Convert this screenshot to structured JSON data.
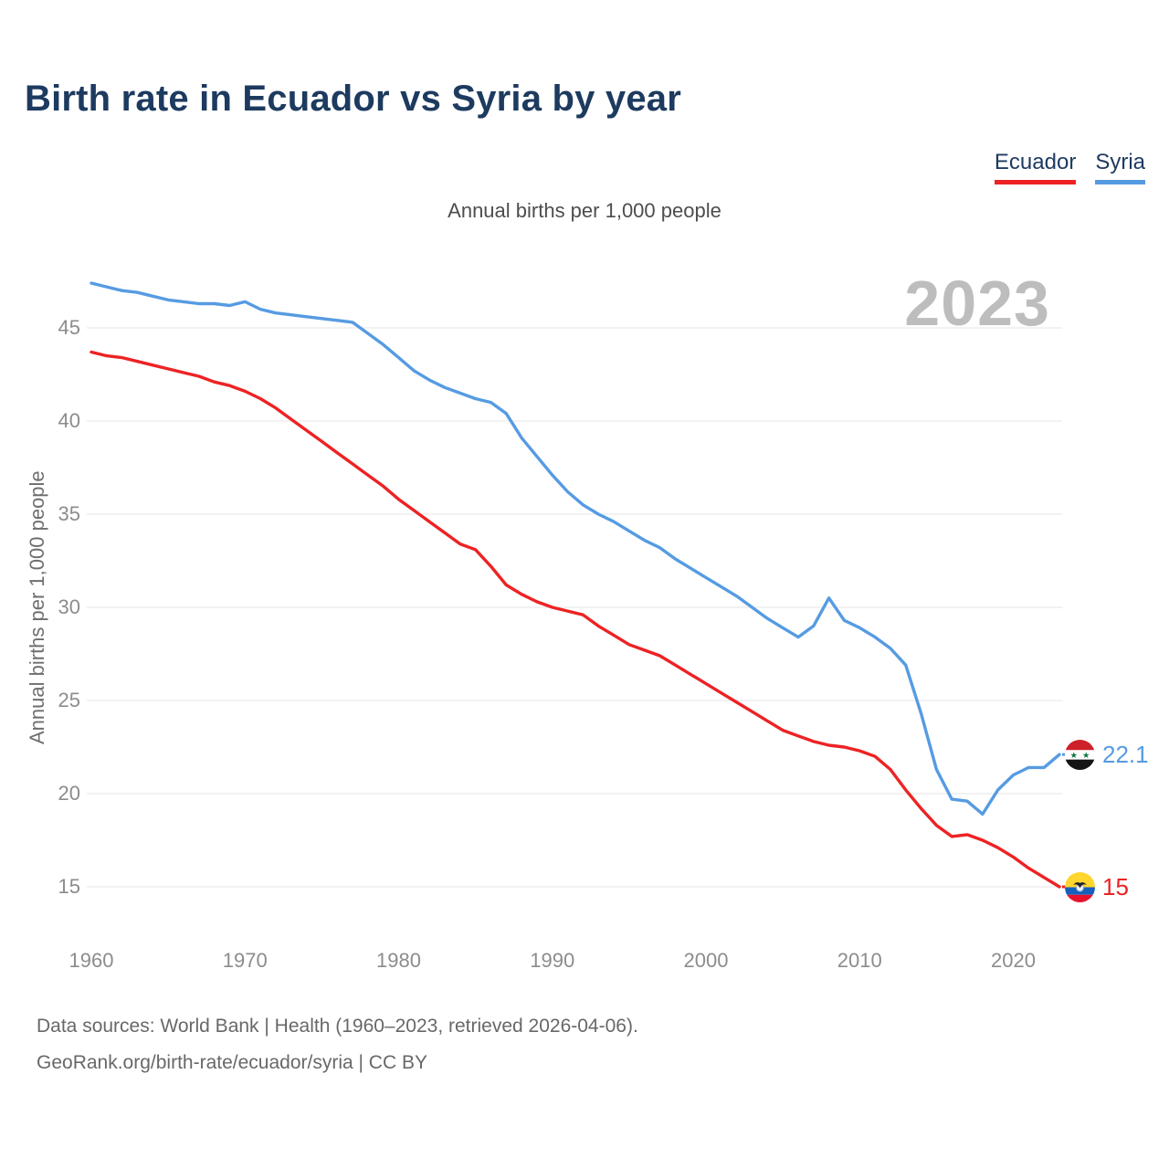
{
  "header": {
    "title": "Birth rate in Ecuador vs Syria by year"
  },
  "legend": {
    "items": [
      {
        "label": "Ecuador",
        "color": "#ed2224"
      },
      {
        "label": "Syria",
        "color": "#569be2"
      }
    ]
  },
  "chart": {
    "subtitle": "Annual births per 1,000 people",
    "ylabel": "Annual births per 1,000 people",
    "watermark": "2023",
    "end_labels": {
      "syria": {
        "text": "22.1",
        "color": "#569be2",
        "icon": "syria-flag"
      },
      "ecuador": {
        "text": "15",
        "color": "#ed2224",
        "icon": "ecuador-flag"
      }
    }
  },
  "footer": {
    "line1": "Data sources: World Bank | Health (1960–2023, retrieved 2026-04-06).",
    "line2": "GeoRank.org/birth-rate/ecuador/syria | CC BY"
  },
  "chart_data": {
    "type": "line",
    "title": "Birth rate in Ecuador vs Syria by year",
    "subtitle": "Annual births per 1,000 people",
    "ylabel": "Annual births per 1,000 people",
    "grid": "horizontal",
    "legend_position": "top-right",
    "ylim": [
      13,
      48.5
    ],
    "yticks": [
      15,
      20,
      25,
      30,
      35,
      40,
      45
    ],
    "xticks": [
      1960,
      1970,
      1980,
      1990,
      2000,
      2010,
      2020
    ],
    "x": [
      1960,
      1961,
      1962,
      1963,
      1964,
      1965,
      1966,
      1967,
      1968,
      1969,
      1970,
      1971,
      1972,
      1973,
      1974,
      1975,
      1976,
      1977,
      1978,
      1979,
      1980,
      1981,
      1982,
      1983,
      1984,
      1985,
      1986,
      1987,
      1988,
      1989,
      1990,
      1991,
      1992,
      1993,
      1994,
      1995,
      1996,
      1997,
      1998,
      1999,
      2000,
      2001,
      2002,
      2003,
      2004,
      2005,
      2006,
      2007,
      2008,
      2009,
      2010,
      2011,
      2012,
      2013,
      2014,
      2015,
      2016,
      2017,
      2018,
      2019,
      2020,
      2021,
      2022,
      2023
    ],
    "series": [
      {
        "name": "Ecuador",
        "color": "#ed2224",
        "values": [
          43.7,
          43.5,
          43.4,
          43.2,
          43.0,
          42.8,
          42.6,
          42.4,
          42.1,
          41.9,
          41.6,
          41.2,
          40.7,
          40.1,
          39.5,
          38.9,
          38.3,
          37.7,
          37.1,
          36.5,
          35.8,
          35.2,
          34.6,
          34.0,
          33.4,
          33.1,
          32.2,
          31.2,
          30.7,
          30.3,
          30.0,
          29.8,
          29.6,
          29.0,
          28.5,
          28.0,
          27.7,
          27.4,
          26.9,
          26.4,
          25.9,
          25.4,
          24.9,
          24.4,
          23.9,
          23.4,
          23.1,
          22.8,
          22.6,
          22.5,
          22.3,
          22.0,
          21.3,
          20.2,
          19.2,
          18.3,
          17.7,
          17.8,
          17.5,
          17.1,
          16.6,
          16.0,
          15.5,
          15.0
        ]
      },
      {
        "name": "Syria",
        "color": "#569be2",
        "values": [
          47.4,
          47.2,
          47.0,
          46.9,
          46.7,
          46.5,
          46.4,
          46.3,
          46.3,
          46.2,
          46.4,
          46.0,
          45.8,
          45.7,
          45.6,
          45.5,
          45.4,
          45.3,
          44.7,
          44.1,
          43.4,
          42.7,
          42.2,
          41.8,
          41.5,
          41.2,
          41.0,
          40.4,
          39.1,
          38.1,
          37.1,
          36.2,
          35.5,
          35.0,
          34.6,
          34.1,
          33.6,
          33.2,
          32.6,
          32.1,
          31.6,
          31.1,
          30.6,
          30.0,
          29.4,
          28.9,
          28.4,
          29.0,
          30.5,
          29.3,
          28.9,
          28.4,
          27.8,
          26.9,
          24.3,
          21.3,
          19.7,
          19.6,
          18.9,
          20.2,
          21.0,
          21.4,
          21.4,
          22.1
        ]
      }
    ],
    "end_value_labels": {
      "Ecuador": 15,
      "Syria": 22.1
    }
  }
}
